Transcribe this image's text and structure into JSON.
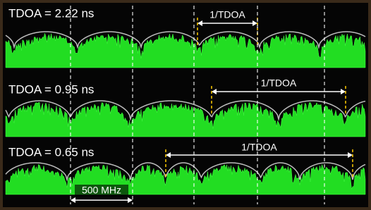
{
  "panels": [
    {
      "label": "TDOA = 2.22 ns",
      "period_label": "1/TDOA"
    },
    {
      "label": "TDOA = 0.95 ns",
      "period_label": "1/TDOA"
    },
    {
      "label": "TDOA = 0.65 ns",
      "period_label": "1/TDOA"
    }
  ],
  "scale_label": "500 MHz"
}
